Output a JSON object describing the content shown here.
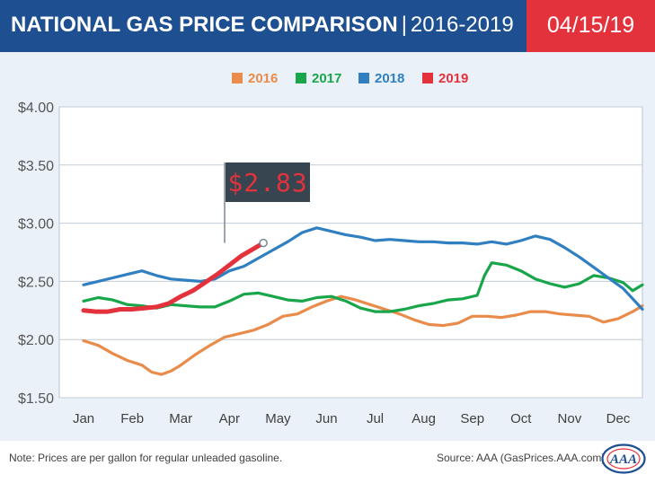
{
  "header": {
    "title_main": "NATIONAL GAS PRICE COMPARISON",
    "title_sep": "|",
    "title_years": "2016-2019",
    "date": "04/15/19"
  },
  "footer": {
    "note": "Note: Prices are per gallon for regular unleaded gasoline.",
    "source": "Source: AAA (GasPrices.AAA.com)",
    "logo_text": "AAA"
  },
  "colors": {
    "title_bg": "#1d4f91",
    "date_bg": "#e4323c",
    "plot_bg": "#eaf1f8",
    "2016": "#e98b4a",
    "2017": "#19a64a",
    "2018": "#2f7fc1",
    "2019": "#e4323c"
  },
  "chart_data": {
    "type": "line",
    "title": "NATIONAL GAS PRICE COMPARISON | 2016-2019",
    "xlabel": "",
    "ylabel": "",
    "x_categories": [
      "Jan",
      "Feb",
      "Mar",
      "Apr",
      "May",
      "Jun",
      "Jul",
      "Aug",
      "Sep",
      "Oct",
      "Nov",
      "Dec"
    ],
    "yticks": [
      "$4.00",
      "$3.50",
      "$3.00",
      "$2.50",
      "$2.00",
      "$1.50"
    ],
    "ylim": [
      1.5,
      4.0
    ],
    "grid": true,
    "legend_position": "top-center",
    "annotation": {
      "text": "$2.83",
      "x": 3.7,
      "y": 2.83
    },
    "series": [
      {
        "name": "2016",
        "color": "#e98b4a",
        "x": [
          0.0,
          0.3,
          0.6,
          0.9,
          1.2,
          1.4,
          1.6,
          1.8,
          2.0,
          2.3,
          2.6,
          2.9,
          3.2,
          3.5,
          3.8,
          4.1,
          4.4,
          4.7,
          5.0,
          5.3,
          5.6,
          5.9,
          6.2,
          6.5,
          6.8,
          7.1,
          7.4,
          7.7,
          8.0,
          8.3,
          8.6,
          8.9,
          9.2,
          9.5,
          9.8,
          10.1,
          10.4,
          10.7,
          11.0,
          11.3,
          11.5
        ],
        "y": [
          1.99,
          1.95,
          1.88,
          1.82,
          1.78,
          1.72,
          1.7,
          1.73,
          1.78,
          1.87,
          1.95,
          2.02,
          2.05,
          2.08,
          2.13,
          2.2,
          2.22,
          2.28,
          2.33,
          2.37,
          2.34,
          2.3,
          2.26,
          2.22,
          2.17,
          2.13,
          2.12,
          2.14,
          2.2,
          2.2,
          2.19,
          2.21,
          2.24,
          2.24,
          2.22,
          2.21,
          2.2,
          2.15,
          2.18,
          2.24,
          2.29
        ]
      },
      {
        "name": "2017",
        "color": "#19a64a",
        "x": [
          0.0,
          0.3,
          0.6,
          0.9,
          1.2,
          1.5,
          1.8,
          2.1,
          2.4,
          2.7,
          3.0,
          3.3,
          3.6,
          3.9,
          4.2,
          4.5,
          4.8,
          5.1,
          5.4,
          5.7,
          6.0,
          6.3,
          6.6,
          6.9,
          7.2,
          7.5,
          7.8,
          8.1,
          8.25,
          8.4,
          8.7,
          9.0,
          9.3,
          9.6,
          9.9,
          10.2,
          10.5,
          10.8,
          11.1,
          11.3,
          11.5
        ],
        "y": [
          2.33,
          2.36,
          2.34,
          2.3,
          2.29,
          2.27,
          2.3,
          2.29,
          2.28,
          2.28,
          2.33,
          2.39,
          2.4,
          2.37,
          2.34,
          2.33,
          2.36,
          2.37,
          2.33,
          2.27,
          2.24,
          2.24,
          2.26,
          2.29,
          2.31,
          2.34,
          2.35,
          2.38,
          2.55,
          2.66,
          2.64,
          2.59,
          2.52,
          2.48,
          2.45,
          2.48,
          2.55,
          2.53,
          2.49,
          2.42,
          2.47
        ]
      },
      {
        "name": "2018",
        "color": "#2f7fc1",
        "x": [
          0.0,
          0.3,
          0.6,
          0.9,
          1.2,
          1.5,
          1.8,
          2.1,
          2.4,
          2.7,
          3.0,
          3.3,
          3.6,
          3.9,
          4.2,
          4.5,
          4.8,
          5.1,
          5.4,
          5.7,
          6.0,
          6.3,
          6.6,
          6.9,
          7.2,
          7.5,
          7.8,
          8.1,
          8.4,
          8.7,
          9.0,
          9.3,
          9.6,
          9.9,
          10.2,
          10.5,
          10.8,
          11.1,
          11.3,
          11.5
        ],
        "y": [
          2.47,
          2.5,
          2.53,
          2.56,
          2.59,
          2.55,
          2.52,
          2.51,
          2.5,
          2.52,
          2.59,
          2.63,
          2.7,
          2.77,
          2.84,
          2.92,
          2.96,
          2.93,
          2.9,
          2.88,
          2.85,
          2.86,
          2.85,
          2.84,
          2.84,
          2.83,
          2.83,
          2.82,
          2.84,
          2.82,
          2.85,
          2.89,
          2.86,
          2.79,
          2.71,
          2.62,
          2.53,
          2.44,
          2.35,
          2.26
        ]
      },
      {
        "name": "2019",
        "color": "#e4323c",
        "x": [
          0.0,
          0.25,
          0.5,
          0.75,
          1.0,
          1.25,
          1.5,
          1.75,
          2.0,
          2.25,
          2.5,
          2.75,
          3.0,
          3.25,
          3.5,
          3.7
        ],
        "y": [
          2.25,
          2.24,
          2.24,
          2.26,
          2.26,
          2.27,
          2.28,
          2.31,
          2.37,
          2.42,
          2.49,
          2.56,
          2.64,
          2.72,
          2.78,
          2.83
        ]
      }
    ]
  }
}
